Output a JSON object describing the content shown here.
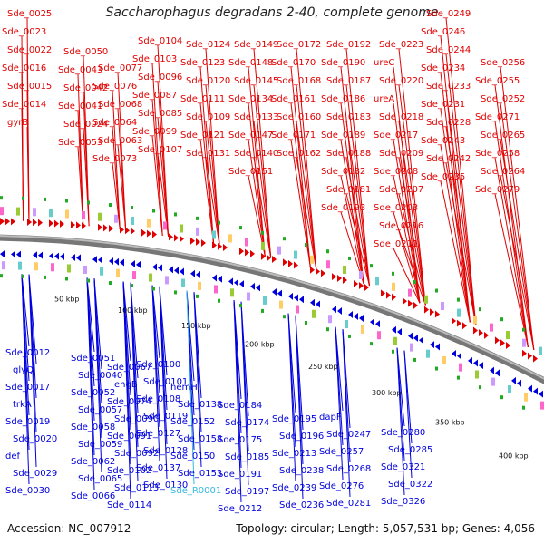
{
  "title": "Saccharophagus degradans 2-40, complete genome",
  "footer": {
    "accession": "Accession: NC_007912",
    "topology": "Topology: circular; Length: 5,057,531 bp; Genes: 4,056"
  },
  "colors": {
    "forward": "#e00000",
    "reverse": "#0000dd",
    "rna": "#33bbdd",
    "backbone": "#777777",
    "green": "#22aa22"
  },
  "scale_ticks": [
    "50 kbp",
    "100 kbp",
    "150 kbp",
    "200 kbp",
    "250 kbp",
    "300 kbp",
    "350 kbp",
    "400 kbp"
  ],
  "forward_labels": [
    "Sde_0025",
    "Sde_0023",
    "Sde_0022",
    "Sde_0016",
    "Sde_0015",
    "Sde_0014",
    "gyrB",
    "Sde_0050",
    "Sde_0043",
    "Sde_0042",
    "Sde_0041",
    "Sde_0024",
    "Sde_0053",
    "Sde_0077",
    "Sde_0076",
    "Sde_0068",
    "Sde_0064",
    "Sde_0063",
    "Sde_0073",
    "Sde_0104",
    "Sde_0103",
    "Sde_0096",
    "Sde_0087",
    "Sde_0085",
    "Sde_0099",
    "Sde_0107",
    "Sde_0124",
    "Sde_0123",
    "Sde_0120",
    "Sde_0111",
    "Sde_0109",
    "Sde_0121",
    "Sde_0131",
    "Sde_0149",
    "Sde_0148",
    "Sde_0145",
    "Sde_0134",
    "Sde_0133",
    "Sde_0147",
    "Sde_0140",
    "Sde_0151",
    "Sde_0172",
    "Sde_0170",
    "Sde_0168",
    "Sde_0161",
    "Sde_0160",
    "Sde_0171",
    "Sde_0162",
    "Sde_0192",
    "Sde_0190",
    "Sde_0187",
    "Sde_0186",
    "Sde_0183",
    "Sde_0189",
    "Sde_0188",
    "Sde_0182",
    "Sde_0181",
    "Sde_0193",
    "Sde_0223",
    "ureC",
    "Sde_0220",
    "ureA",
    "Sde_0218",
    "Sde_0217",
    "Sde_0209",
    "Sde_0208",
    "Sde_0207",
    "Sde_0203",
    "Sde_0216",
    "Sde_0211",
    "Sde_0249",
    "Sde_0246",
    "Sde_0244",
    "Sde_0234",
    "Sde_0233",
    "Sde_0231",
    "Sde_0228",
    "Sde_0243",
    "Sde_0242",
    "Sde_0235",
    "Sde_0256",
    "Sde_0255",
    "Sde_0252",
    "Sde_0271",
    "Sde_0265",
    "Sde_0258",
    "Sde_0264",
    "Sde_0279"
  ],
  "reverse_labels": [
    "Sde_0012",
    "glyQ",
    "Sde_0017",
    "trkA",
    "Sde_0019",
    "Sde_0020",
    "def",
    "Sde_0029",
    "Sde_0030",
    "Sde_0051",
    "Sde_0040",
    "Sde_0052",
    "Sde_0057",
    "Sde_0058",
    "Sde_0059",
    "Sde_0062",
    "Sde_0065",
    "Sde_0066",
    "Sde_0067",
    "engB",
    "Sde_0074",
    "Sde_0090",
    "Sde_0091",
    "Sde_0092",
    "Sde_0102",
    "Sde_0113",
    "Sde_0114",
    "Sde_0100",
    "Sde_0101",
    "Sde_0108",
    "Sde_0119",
    "Sde_0127",
    "Sde_0128",
    "Sde_0137",
    "Sde_0130",
    "hemH",
    "Sde_0138",
    "Sde_0152",
    "Sde_0158",
    "Sde_0150",
    "Sde_0153",
    "Sde_R0001",
    "Sde_0184",
    "Sde_0174",
    "Sde_0175",
    "Sde_0185",
    "Sde_0191",
    "Sde_0197",
    "Sde_0212",
    "Sde_0195",
    "Sde_0196",
    "Sde_0213",
    "Sde_0238",
    "Sde_0239",
    "Sde_0236",
    "dapF",
    "Sde_0247",
    "Sde_0257",
    "Sde_0268",
    "Sde_0276",
    "Sde_0281",
    "Sde_0280",
    "Sde_0285",
    "Sde_0321",
    "Sde_0322",
    "Sde_0326"
  ]
}
